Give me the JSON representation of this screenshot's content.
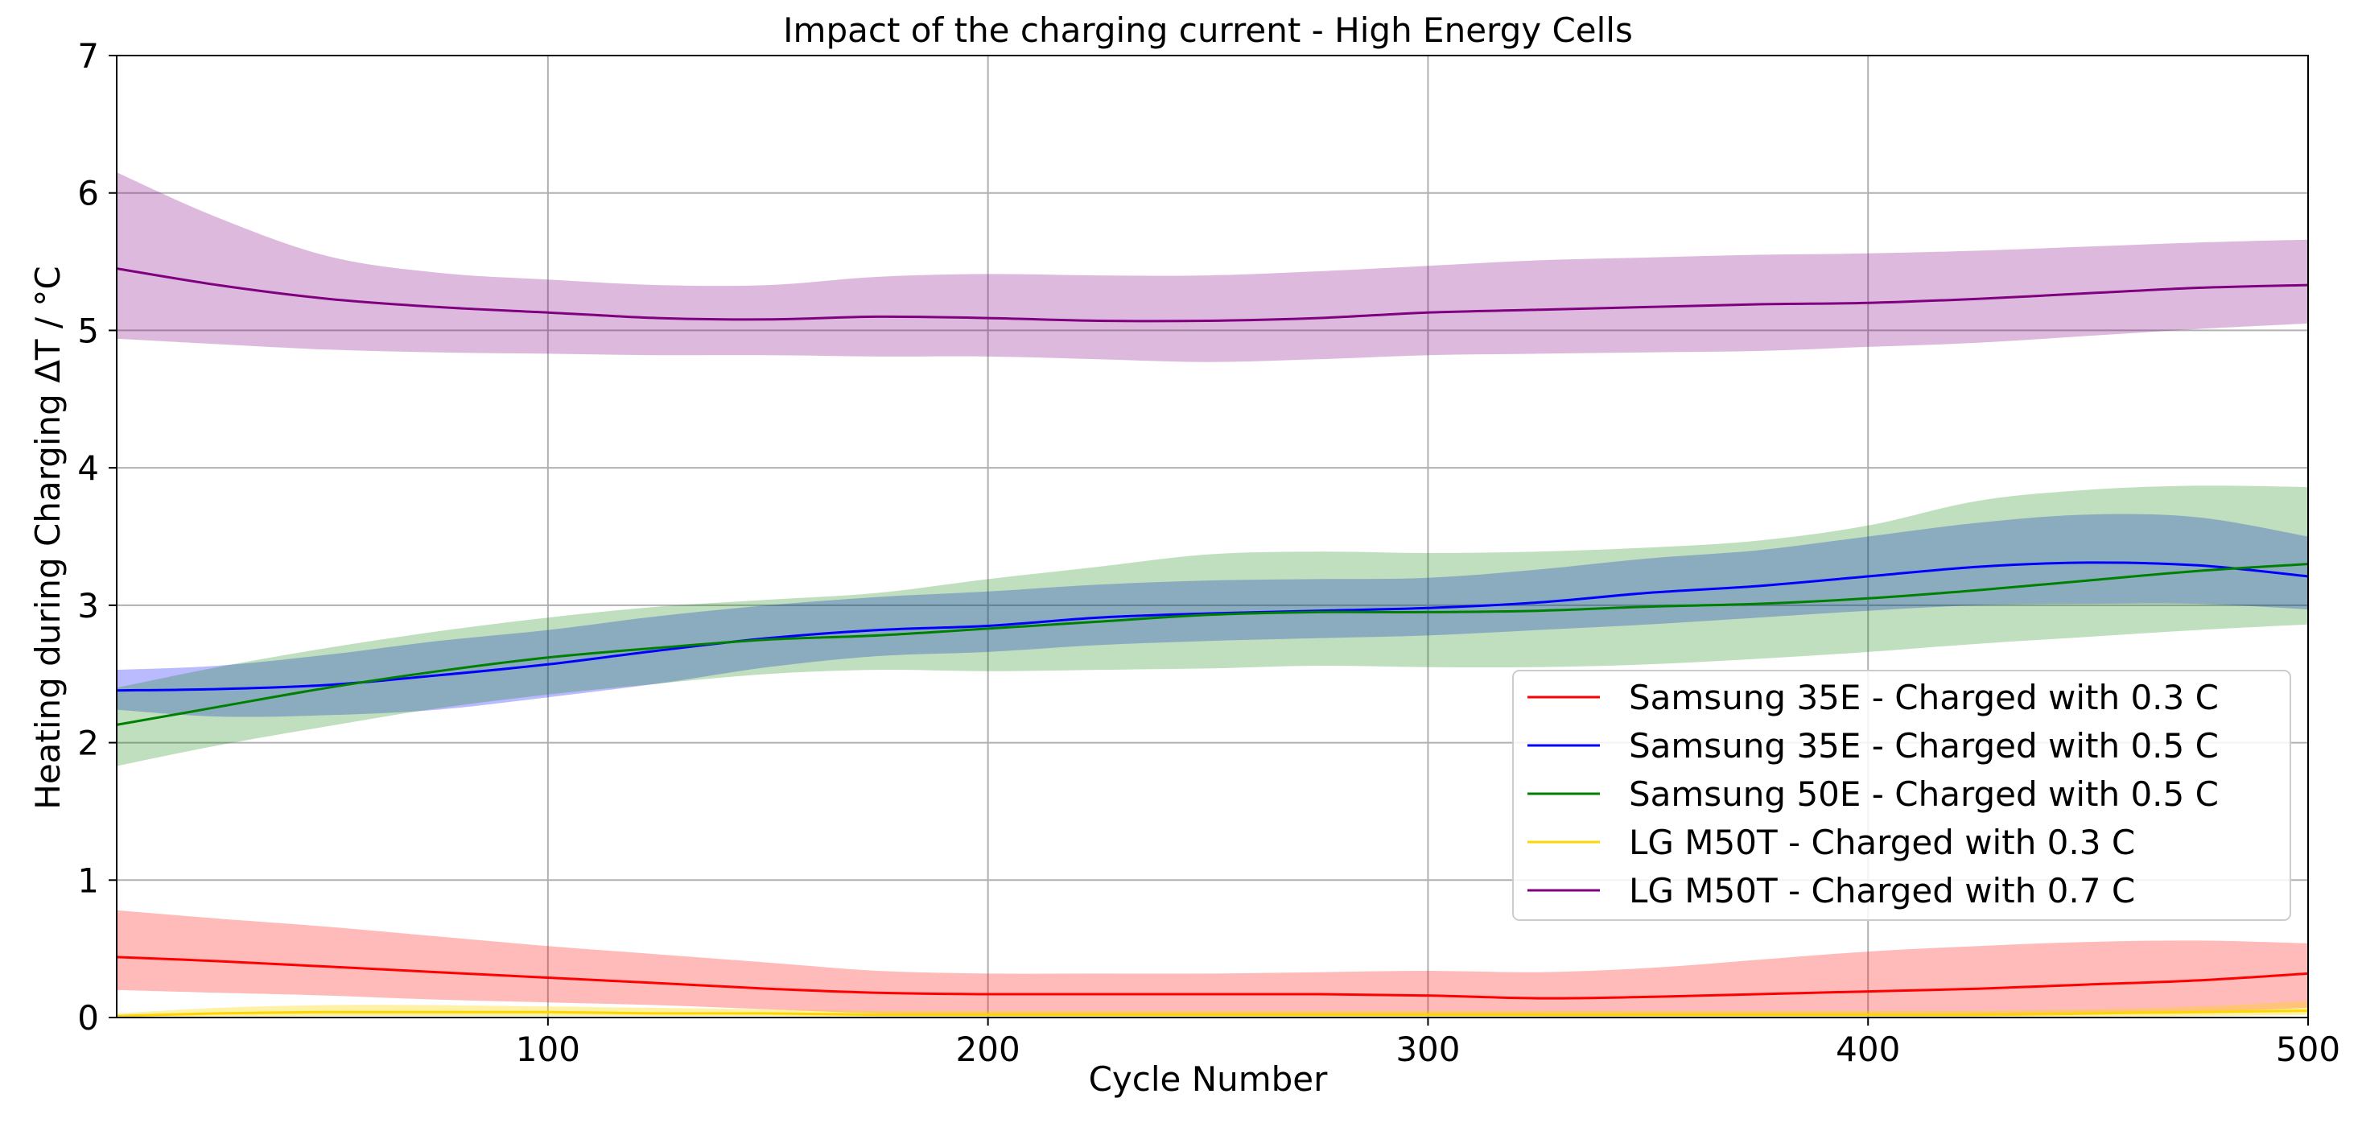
{
  "chart_data": {
    "type": "line",
    "title": "Impact of the charging current - High Energy Cells",
    "xlabel": "Cycle Number",
    "ylabel": "Heating during Charging ΔT / °C",
    "xlim": [
      2,
      500
    ],
    "ylim": [
      0,
      7
    ],
    "xticks": [
      100,
      200,
      300,
      400,
      500
    ],
    "yticks": [
      0,
      1,
      2,
      3,
      4,
      5,
      6,
      7
    ],
    "grid": true,
    "legend_position": "center-right",
    "series": [
      {
        "name": "Samsung 35E - Charged with 0.3 C",
        "color": "#ff0000",
        "band_color": "#ff0000",
        "band_opacity": 0.27,
        "x": [
          2,
          25,
          50,
          75,
          100,
          125,
          150,
          175,
          200,
          225,
          250,
          275,
          300,
          325,
          350,
          375,
          400,
          425,
          450,
          475,
          500
        ],
        "y": [
          0.44,
          0.41,
          0.37,
          0.33,
          0.29,
          0.25,
          0.21,
          0.18,
          0.17,
          0.17,
          0.17,
          0.17,
          0.16,
          0.14,
          0.15,
          0.17,
          0.19,
          0.21,
          0.24,
          0.27,
          0.32
        ],
        "lower": [
          0.2,
          0.18,
          0.16,
          0.13,
          0.11,
          0.09,
          0.06,
          0.03,
          0.02,
          0.02,
          0.02,
          0.02,
          0.02,
          0.01,
          0.01,
          0.01,
          0.01,
          0.01,
          0.02,
          0.04,
          0.07
        ],
        "upper": [
          0.78,
          0.72,
          0.66,
          0.59,
          0.52,
          0.46,
          0.4,
          0.34,
          0.32,
          0.32,
          0.32,
          0.33,
          0.34,
          0.33,
          0.36,
          0.42,
          0.48,
          0.52,
          0.55,
          0.56,
          0.54
        ]
      },
      {
        "name": "Samsung 35E - Charged with 0.5 C",
        "color": "#0000ff",
        "band_color": "#0000ff",
        "band_opacity": 0.27,
        "x": [
          2,
          25,
          50,
          75,
          100,
          125,
          150,
          175,
          200,
          225,
          250,
          275,
          300,
          325,
          350,
          375,
          400,
          425,
          450,
          475,
          500
        ],
        "y": [
          2.38,
          2.39,
          2.42,
          2.49,
          2.57,
          2.67,
          2.76,
          2.82,
          2.85,
          2.91,
          2.94,
          2.96,
          2.98,
          3.02,
          3.09,
          3.14,
          3.21,
          3.28,
          3.31,
          3.29,
          3.21
        ],
        "lower": [
          2.24,
          2.19,
          2.2,
          2.24,
          2.33,
          2.43,
          2.55,
          2.63,
          2.66,
          2.71,
          2.74,
          2.76,
          2.78,
          2.82,
          2.86,
          2.91,
          2.96,
          3.0,
          3.01,
          3.01,
          2.97
        ],
        "upper": [
          2.53,
          2.56,
          2.64,
          2.74,
          2.82,
          2.92,
          3.0,
          3.06,
          3.1,
          3.15,
          3.18,
          3.19,
          3.2,
          3.26,
          3.34,
          3.4,
          3.5,
          3.6,
          3.66,
          3.64,
          3.5
        ]
      },
      {
        "name": "Samsung 50E - Charged with 0.5 C",
        "color": "#008000",
        "band_color": "#008000",
        "band_opacity": 0.25,
        "x": [
          2,
          25,
          50,
          75,
          100,
          125,
          150,
          175,
          200,
          225,
          250,
          275,
          300,
          325,
          350,
          375,
          400,
          425,
          450,
          475,
          500
        ],
        "y": [
          2.13,
          2.26,
          2.4,
          2.52,
          2.62,
          2.69,
          2.75,
          2.78,
          2.83,
          2.88,
          2.93,
          2.95,
          2.95,
          2.96,
          2.99,
          3.01,
          3.05,
          3.11,
          3.18,
          3.25,
          3.3
        ],
        "lower": [
          1.83,
          1.98,
          2.12,
          2.25,
          2.35,
          2.43,
          2.5,
          2.53,
          2.52,
          2.53,
          2.54,
          2.56,
          2.55,
          2.55,
          2.57,
          2.61,
          2.66,
          2.72,
          2.77,
          2.82,
          2.86
        ],
        "upper": [
          2.4,
          2.55,
          2.69,
          2.81,
          2.91,
          2.99,
          3.04,
          3.09,
          3.19,
          3.28,
          3.37,
          3.39,
          3.38,
          3.39,
          3.42,
          3.47,
          3.58,
          3.76,
          3.84,
          3.87,
          3.86
        ]
      },
      {
        "name": "LG M50T - Charged with 0.3 C",
        "color": "#ffd700",
        "band_color": "#ffd700",
        "band_opacity": 0.35,
        "x": [
          2,
          25,
          50,
          75,
          100,
          125,
          150,
          175,
          200,
          225,
          250,
          275,
          300,
          325,
          350,
          375,
          400,
          425,
          450,
          475,
          500
        ],
        "y": [
          0.01,
          0.03,
          0.04,
          0.04,
          0.04,
          0.03,
          0.03,
          0.02,
          0.02,
          0.02,
          0.02,
          0.02,
          0.02,
          0.02,
          0.02,
          0.02,
          0.02,
          0.02,
          0.03,
          0.04,
          0.05
        ],
        "lower": [
          0.0,
          0.0,
          0.01,
          0.01,
          0.01,
          0.01,
          0.01,
          0.0,
          0.0,
          0.0,
          0.0,
          0.0,
          0.0,
          0.0,
          0.0,
          0.0,
          0.0,
          0.0,
          0.0,
          0.01,
          0.02
        ],
        "upper": [
          0.03,
          0.07,
          0.09,
          0.09,
          0.08,
          0.07,
          0.06,
          0.05,
          0.05,
          0.05,
          0.05,
          0.05,
          0.05,
          0.05,
          0.05,
          0.05,
          0.05,
          0.05,
          0.06,
          0.08,
          0.12
        ]
      },
      {
        "name": "LG M50T - Charged with 0.7 C",
        "color": "#800080",
        "band_color": "#800080",
        "band_opacity": 0.27,
        "x": [
          2,
          25,
          50,
          75,
          100,
          125,
          150,
          175,
          200,
          225,
          250,
          275,
          300,
          325,
          350,
          375,
          400,
          425,
          450,
          475,
          500
        ],
        "y": [
          5.45,
          5.33,
          5.23,
          5.17,
          5.13,
          5.09,
          5.08,
          5.1,
          5.09,
          5.07,
          5.07,
          5.09,
          5.13,
          5.15,
          5.17,
          5.19,
          5.2,
          5.23,
          5.27,
          5.31,
          5.33
        ],
        "lower": [
          4.94,
          4.9,
          4.86,
          4.84,
          4.83,
          4.82,
          4.82,
          4.81,
          4.81,
          4.79,
          4.77,
          4.79,
          4.82,
          4.83,
          4.84,
          4.85,
          4.88,
          4.91,
          4.96,
          5.01,
          5.05
        ],
        "upper": [
          6.15,
          5.82,
          5.54,
          5.42,
          5.37,
          5.33,
          5.33,
          5.39,
          5.41,
          5.4,
          5.4,
          5.43,
          5.47,
          5.51,
          5.53,
          5.55,
          5.56,
          5.58,
          5.61,
          5.64,
          5.66
        ]
      }
    ]
  }
}
